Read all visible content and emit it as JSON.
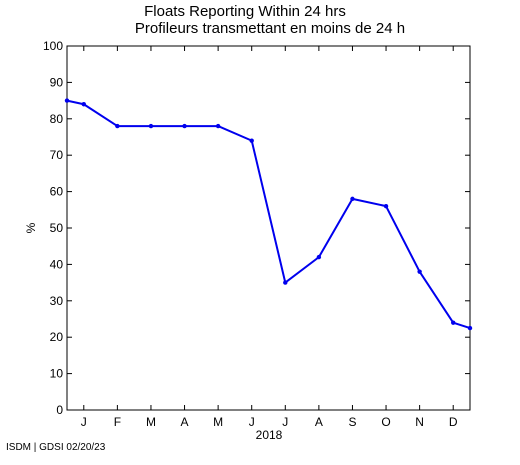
{
  "chart_data": {
    "type": "line",
    "title": "Floats Reporting Within 24 hrs",
    "subtitle": "Profileurs transmettant en moins de 24 h",
    "ylabel": "%",
    "xlabel": "2018",
    "ylim": [
      0,
      100
    ],
    "yticks": [
      0,
      10,
      20,
      30,
      40,
      50,
      60,
      70,
      80,
      90,
      100
    ],
    "xlim": [
      0,
      12
    ],
    "month_ticks": [
      {
        "label": "J",
        "x": 0.5
      },
      {
        "label": "F",
        "x": 1.5
      },
      {
        "label": "M",
        "x": 2.5
      },
      {
        "label": "A",
        "x": 3.5
      },
      {
        "label": "M",
        "x": 4.5
      },
      {
        "label": "J",
        "x": 5.5
      },
      {
        "label": "J",
        "x": 6.5
      },
      {
        "label": "A",
        "x": 7.5
      },
      {
        "label": "S",
        "x": 8.5
      },
      {
        "label": "O",
        "x": 9.5
      },
      {
        "label": "N",
        "x": 10.5
      },
      {
        "label": "D",
        "x": 11.5
      }
    ],
    "series": [
      {
        "color": "#0000ee",
        "points": [
          {
            "x": 0.0,
            "y": 85
          },
          {
            "x": 0.5,
            "y": 84
          },
          {
            "x": 1.5,
            "y": 78
          },
          {
            "x": 2.5,
            "y": 78
          },
          {
            "x": 3.5,
            "y": 78
          },
          {
            "x": 4.5,
            "y": 78
          },
          {
            "x": 5.5,
            "y": 74
          },
          {
            "x": 6.5,
            "y": 35
          },
          {
            "x": 7.5,
            "y": 42
          },
          {
            "x": 8.5,
            "y": 58
          },
          {
            "x": 9.5,
            "y": 56
          },
          {
            "x": 10.5,
            "y": 38
          },
          {
            "x": 11.5,
            "y": 24
          },
          {
            "x": 12.0,
            "y": 22.5
          }
        ]
      }
    ],
    "grid": false
  },
  "footer": {
    "text": "ISDM | GDSI 02/20/23"
  }
}
